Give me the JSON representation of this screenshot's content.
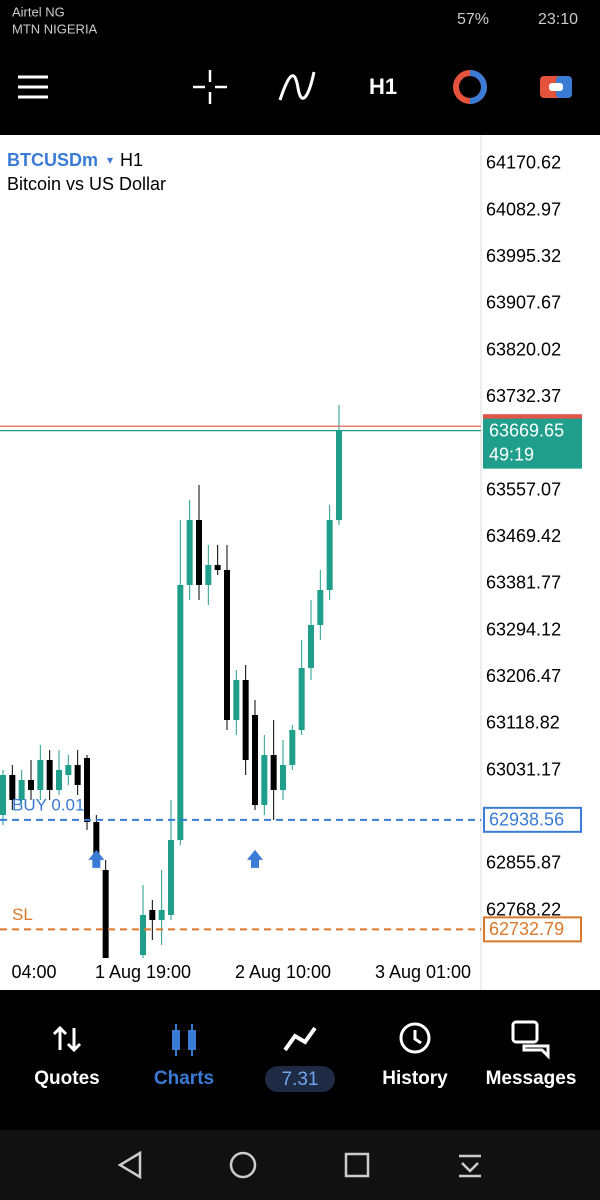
{
  "status_bar": {
    "carrier_1": "Airtel NG",
    "carrier_2": "MTN NIGERIA",
    "battery": "57%",
    "time": "23:10"
  },
  "toolbar": {
    "timeframe": "H1"
  },
  "chart_data": {
    "type": "candlestick",
    "symbol": "BTCUSDm",
    "timeframe": "H1",
    "description": "Bitcoin vs US Dollar",
    "up_color": "#1f9e8c",
    "down_color": "#000000",
    "categories": [
      "04:00",
      null,
      null,
      null,
      null,
      null,
      null,
      null,
      null,
      null,
      null,
      null,
      null,
      null,
      null,
      "1 Aug 19:00",
      null,
      null,
      null,
      null,
      null,
      null,
      null,
      null,
      null,
      null,
      null,
      null,
      null,
      null,
      "2 Aug 10:00",
      null,
      null,
      null,
      null,
      null,
      null,
      null,
      null,
      null,
      null,
      null,
      null,
      null,
      null,
      "3 Aug 01:00",
      null,
      null,
      null
    ],
    "open": [
      62947.6,
      63022.8,
      62975.8,
      63013.4,
      62994.6,
      63051.0,
      62994.6,
      63022.8,
      63041.6,
      63054.7,
      62934.5,
      62844.3,
      null,
      null,
      null,
      62684.6,
      62769.2,
      62750.4,
      62759.8,
      62900.7,
      63379.7,
      63501.8,
      63379.7,
      63417.3,
      63407.9,
      63126.1,
      63201.2,
      63135.5,
      62966.4,
      63060.3,
      62994.6,
      63041.6,
      63107.3,
      63223.8,
      63304.6,
      63370.3,
      63501.8,
      null,
      null,
      null,
      null,
      null,
      null,
      null,
      null,
      null,
      null,
      null,
      null
    ],
    "high": [
      63032.2,
      63041.6,
      63032.2,
      63051.0,
      63079.1,
      63069.7,
      63069.7,
      63060.3,
      63069.7,
      63060.3,
      62947.6,
      62863.1,
      null,
      null,
      null,
      62816.1,
      62788.0,
      62844.3,
      62975.8,
      63501.8,
      63539.4,
      63567.6,
      63454.9,
      63454.9,
      63454.9,
      63220.0,
      63229.4,
      63163.7,
      63097.9,
      63126.1,
      63088.5,
      63116.7,
      63276.4,
      63351.5,
      63407.9,
      63530.0,
      63717.9,
      null,
      null,
      null,
      null,
      null,
      null,
      null,
      null,
      null,
      null,
      null,
      null
    ],
    "low": [
      62928.8,
      62957.0,
      62966.4,
      62975.8,
      62975.8,
      62975.8,
      62985.2,
      63004.0,
      62985.2,
      62919.5,
      62853.7,
      62660.0,
      null,
      null,
      null,
      62679.0,
      62712.8,
      62703.4,
      62750.4,
      62891.3,
      63351.5,
      63351.5,
      63342.1,
      63398.5,
      63107.3,
      63097.9,
      63022.8,
      62957.0,
      62947.6,
      62938.2,
      62975.8,
      63032.2,
      63097.9,
      63201.2,
      63276.4,
      63351.5,
      63492.4,
      null,
      null,
      null,
      null,
      null,
      null,
      null,
      null,
      null,
      null,
      null,
      null
    ],
    "close": [
      63022.8,
      62975.8,
      63013.4,
      62994.6,
      63051.0,
      62994.6,
      63032.2,
      63041.6,
      63004.0,
      62934.5,
      62863.1,
      62670.0,
      null,
      null,
      null,
      62759.8,
      62750.4,
      62769.2,
      62900.7,
      63379.7,
      63501.8,
      63379.7,
      63417.3,
      63407.9,
      63126.1,
      63201.2,
      63051.0,
      62966.4,
      63060.3,
      62994.6,
      63041.6,
      63107.3,
      63223.8,
      63304.6,
      63370.3,
      63501.8,
      63669.65,
      null,
      null,
      null,
      null,
      null,
      null,
      null,
      null,
      null,
      null,
      null,
      null
    ],
    "ylim": [
      62679,
      64225
    ],
    "yticks": [
      64170.62,
      64082.97,
      63995.32,
      63907.67,
      63820.02,
      63732.37,
      63557.07,
      63469.42,
      63381.77,
      63294.12,
      63206.47,
      63118.82,
      63031.17,
      62855.87,
      62768.22
    ],
    "ask": 63678.0,
    "bid": {
      "value": 63669.65,
      "timer": "49:19"
    },
    "buy": {
      "label": "BUY 0.01",
      "value": 62938.56
    },
    "sl": {
      "label": "SL",
      "value": 62732.79
    }
  },
  "bottom_nav": {
    "quotes": "Quotes",
    "charts": "Charts",
    "trade": 7.31,
    "history": "History",
    "messages": "Messages"
  }
}
